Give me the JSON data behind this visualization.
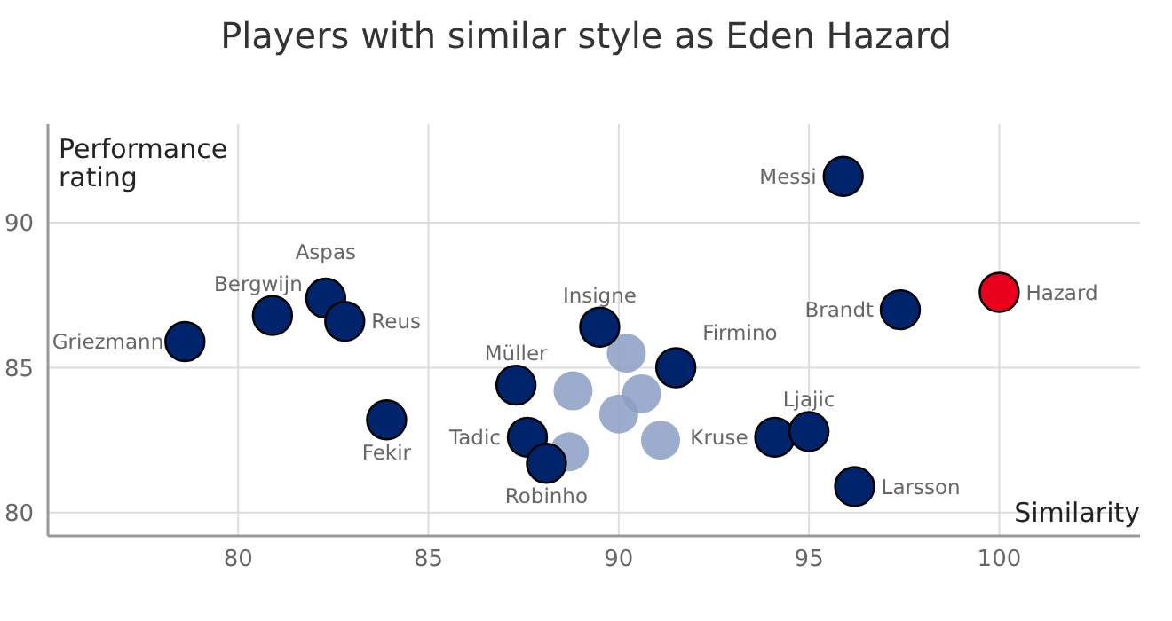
{
  "chart_data": {
    "type": "scatter",
    "title": "Players with similar style as Eden Hazard",
    "xlabel": "Similarity",
    "ylabel": "Performance rating",
    "xlim": [
      75,
      103.7
    ],
    "ylim": [
      79.2,
      93.4
    ],
    "xticks": [
      80,
      85,
      90,
      95,
      100
    ],
    "yticks": [
      80,
      85,
      90
    ],
    "grid": true,
    "legend": false,
    "marker": "circle",
    "series": [
      {
        "color": "#8b9dc3",
        "x": [
          88.8,
          90.2,
          90.6,
          90.0,
          91.1,
          88.7
        ],
        "values": [
          84.2,
          85.5,
          84.1,
          83.4,
          82.5,
          82.1
        ]
      },
      {
        "color": "#00246b",
        "x": [
          78.6,
          80.9,
          82.3,
          82.8,
          83.9,
          87.3,
          87.6,
          88.1,
          89.5,
          91.5,
          94.1,
          95.0,
          96.2,
          95.9,
          97.4
        ],
        "values": [
          85.9,
          86.8,
          87.4,
          86.6,
          83.2,
          84.4,
          82.6,
          81.7,
          86.4,
          85.0,
          82.6,
          82.8,
          80.9,
          91.6,
          87.0
        ]
      },
      {
        "color": "#e8001c",
        "x": [
          100
        ],
        "values": [
          87.6
        ]
      }
    ],
    "annotations": [
      {
        "text": "Griezmann",
        "x": 78.6,
        "y": 85.9
      },
      {
        "text": "Bergwijn",
        "x": 80.9,
        "y": 86.8
      },
      {
        "text": "Aspas",
        "x": 82.3,
        "y": 87.4
      },
      {
        "text": "Reus",
        "x": 82.8,
        "y": 86.6
      },
      {
        "text": "Fekir",
        "x": 83.9,
        "y": 83.2
      },
      {
        "text": "Müller",
        "x": 87.3,
        "y": 84.4
      },
      {
        "text": "Tadic",
        "x": 87.6,
        "y": 82.6
      },
      {
        "text": "Robinho",
        "x": 88.1,
        "y": 81.7
      },
      {
        "text": "Insigne",
        "x": 89.5,
        "y": 86.4
      },
      {
        "text": "Firmino",
        "x": 91.5,
        "y": 85.0
      },
      {
        "text": "Kruse",
        "x": 94.1,
        "y": 82.6
      },
      {
        "text": "Ljajic",
        "x": 95.0,
        "y": 82.8
      },
      {
        "text": "Larsson",
        "x": 96.2,
        "y": 80.9
      },
      {
        "text": "Messi",
        "x": 95.9,
        "y": 91.6
      },
      {
        "text": "Brandt",
        "x": 97.4,
        "y": 87.0
      },
      {
        "text": "Hazard",
        "x": 100,
        "y": 87.6
      }
    ]
  }
}
